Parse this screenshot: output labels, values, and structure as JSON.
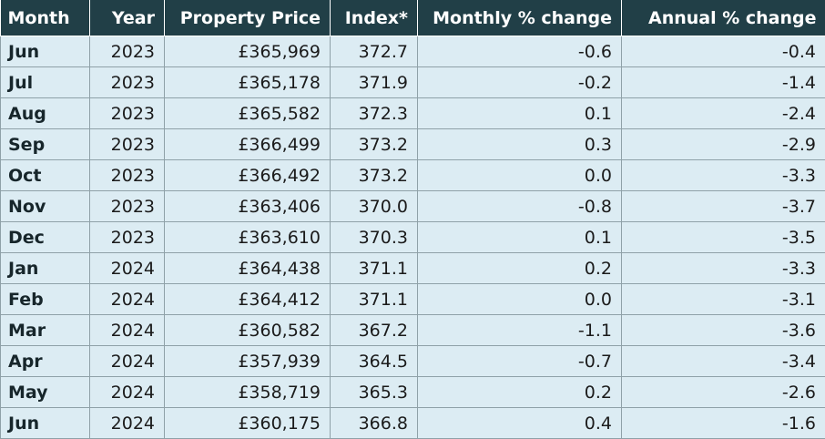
{
  "table": {
    "headers": [
      "Month",
      "Year",
      "Property Price",
      "Index*",
      "Monthly % change",
      "Annual % change"
    ],
    "rows": [
      [
        "Jun",
        "2023",
        "£365,969",
        "372.7",
        "-0.6",
        "-0.4"
      ],
      [
        "Jul",
        "2023",
        "£365,178",
        "371.9",
        "-0.2",
        "-1.4"
      ],
      [
        "Aug",
        "2023",
        "£365,582",
        "372.3",
        "0.1",
        "-2.4"
      ],
      [
        "Sep",
        "2023",
        "£366,499",
        "373.2",
        "0.3",
        "-2.9"
      ],
      [
        "Oct",
        "2023",
        "£366,492",
        "373.2",
        "0.0",
        "-3.3"
      ],
      [
        "Nov",
        "2023",
        "£363,406",
        "370.0",
        "-0.8",
        "-3.7"
      ],
      [
        "Dec",
        "2023",
        "£363,610",
        "370.3",
        "0.1",
        "-3.5"
      ],
      [
        "Jan",
        "2024",
        "£364,438",
        "371.1",
        "0.2",
        "-3.3"
      ],
      [
        "Feb",
        "2024",
        "£364,412",
        "371.1",
        "0.0",
        "-3.1"
      ],
      [
        "Mar",
        "2024",
        "£360,582",
        "367.2",
        "-1.1",
        "-3.6"
      ],
      [
        "Apr",
        "2024",
        "£357,939",
        "364.5",
        "-0.7",
        "-3.4"
      ],
      [
        "May",
        "2024",
        "£358,719",
        "365.3",
        "0.2",
        "-2.6"
      ],
      [
        "Jun",
        "2024",
        "£360,175",
        "366.8",
        "0.4",
        "-1.6"
      ]
    ]
  },
  "colors": {
    "header_bg": "#213f47",
    "header_text": "#ffffff",
    "row_bg": "#dcecf3",
    "grid_line": "#8fa1a8"
  }
}
